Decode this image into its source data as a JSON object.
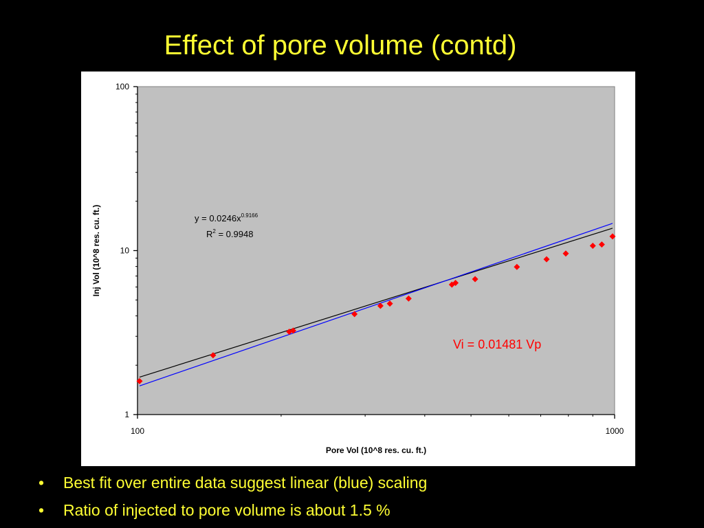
{
  "slide": {
    "title": "Effect of pore volume (contd)",
    "bullets": [
      "Best fit over entire data suggest linear (blue) scaling",
      "Ratio of injected to pore volume is about 1.5 %"
    ],
    "bullet_glyph": "•"
  },
  "chart_data": {
    "type": "scatter",
    "xlabel": "Pore Vol (10^8 res. cu. ft.)",
    "ylabel": "Inj Vol (10^8 res. cu. ft.)",
    "xscale": "log",
    "yscale": "log",
    "xlim": [
      100,
      1000
    ],
    "ylim": [
      1,
      100
    ],
    "x_ticks": [
      "100",
      "1000"
    ],
    "y_ticks": [
      "1",
      "10",
      "100"
    ],
    "grid": false,
    "legend": "none",
    "plot_background": "#c0c0c0",
    "points": {
      "color": "#ff0000",
      "marker": "diamond",
      "x": [
        101,
        144,
        208,
        212,
        285,
        323,
        338,
        370,
        456,
        464,
        510,
        624,
        720,
        790,
        900,
        940,
        990
      ],
      "y": [
        1.6,
        2.3,
        3.2,
        3.25,
        4.1,
        4.6,
        4.75,
        5.1,
        6.2,
        6.35,
        6.7,
        7.95,
        8.85,
        9.6,
        10.7,
        10.9,
        12.2
      ]
    },
    "trendlines": [
      {
        "label": "power",
        "color": "#000000",
        "equation_line1": "y = 0.0246x",
        "equation_exponent": "0.9166",
        "r2_prefix": "R",
        "r2_superscript": "2",
        "r2_value": " = 0.9948",
        "coef": 0.0246,
        "exponent": 0.9166,
        "x_range": [
          101,
          990
        ]
      },
      {
        "label": "linear",
        "color": "#0000ff",
        "equation": "Vi = 0.01481 Vp",
        "coef": 0.01481,
        "exponent": 1,
        "x_range": [
          101,
          990
        ]
      }
    ]
  }
}
